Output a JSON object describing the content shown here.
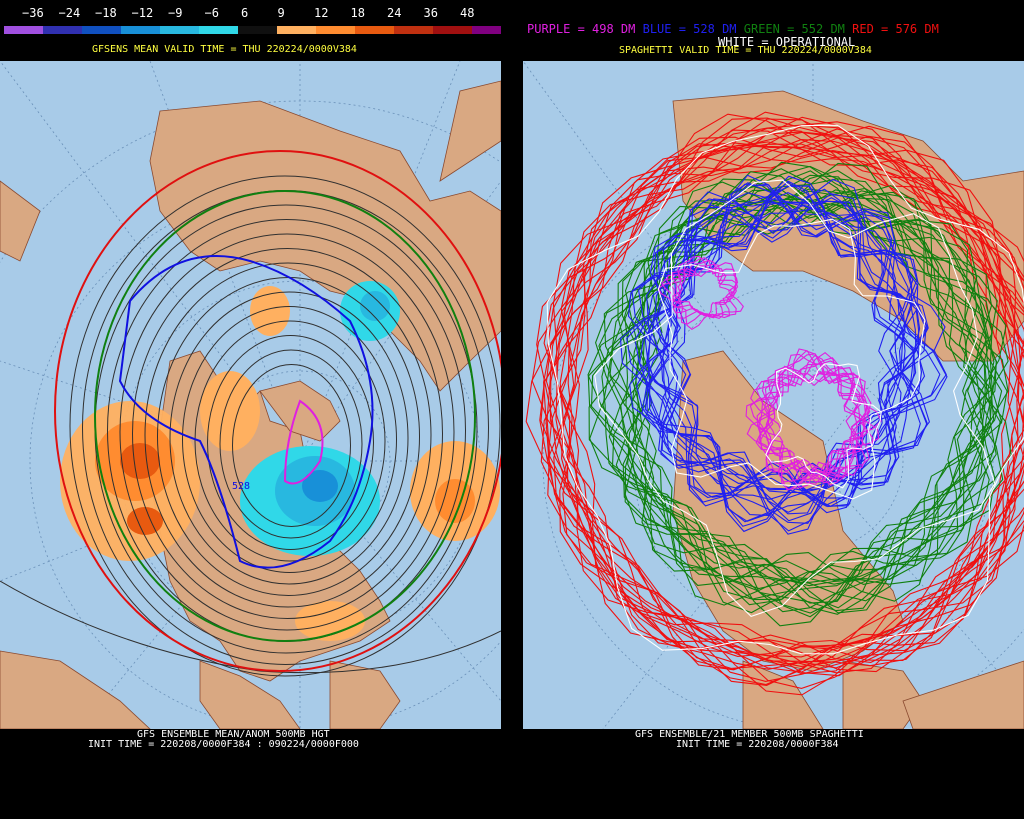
{
  "left": {
    "colorbar": {
      "ticks": [
        "−36",
        "−24",
        "−18",
        "−12",
        "−9",
        "−6",
        "6",
        "9",
        "12",
        "18",
        "24",
        "36",
        "48"
      ],
      "colors": [
        "#a050e0",
        "#3030b0",
        "#1050c0",
        "#1890d8",
        "#28b8e0",
        "#30d8e8",
        "#101010",
        "#ffb060",
        "#ff8c30",
        "#e85a10",
        "#c03010",
        "#a01010",
        "#800080"
      ]
    },
    "header": "GFSENS MEAN VALID TIME = THU 220224/0000V384",
    "contour_label": "528",
    "footer_line1": "GFS ENSEMBLE MEAN/ANOM 500MB HGT",
    "footer_line2": "INIT TIME = 220208/0000F384 : 090224/0000F000"
  },
  "right": {
    "legend": [
      {
        "text": "PURPLE = 498 DM",
        "color": "#e020e0"
      },
      {
        "text": "BLUE = 528 DM",
        "color": "#2020f0"
      },
      {
        "text": "GREEN = 552 DM",
        "color": "#108010"
      },
      {
        "text": "RED = 576 DM",
        "color": "#f01010"
      }
    ],
    "legend_white": "WHITE = OPERATIONAL",
    "header": "SPAGHETTI VALID TIME = THU 220224/0000V384",
    "footer_line1": "GFS ENSEMBLE/21 MEMBER 500MB SPAGHETTI",
    "footer_line2": "INIT TIME = 220208/0000F384"
  },
  "colors": {
    "ocean": "#a8cbe8",
    "land": "#d9a882",
    "header_yellow": "#ffff40"
  }
}
